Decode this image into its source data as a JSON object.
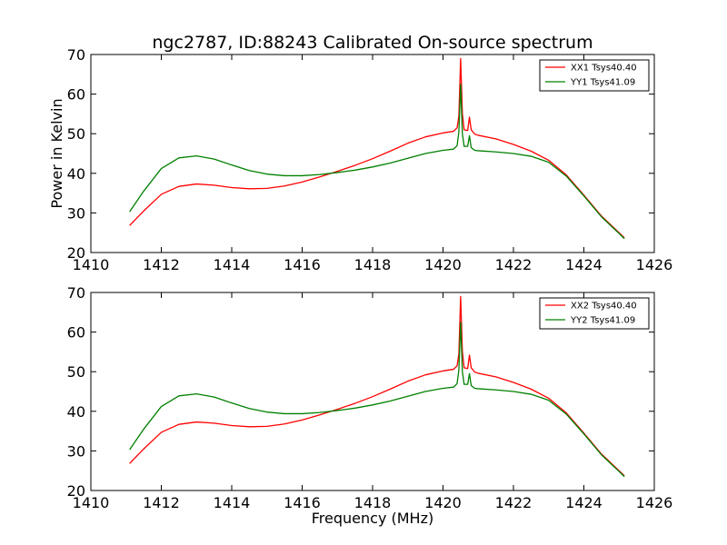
{
  "chart_data": [
    {
      "type": "line",
      "title": "ngc2787, ID:88243 Calibrated On-source spectrum",
      "xlabel": "",
      "ylabel": "Power in Kelvin",
      "xlim": [
        1410,
        1426
      ],
      "ylim": [
        20,
        70
      ],
      "xticks": [
        "1410",
        "1412",
        "1414",
        "1416",
        "1418",
        "1420",
        "1422",
        "1424",
        "1426"
      ],
      "yticks": [
        "20",
        "30",
        "40",
        "50",
        "60",
        "70"
      ],
      "legend_position": "top-right",
      "grid": false,
      "series": [
        {
          "name": "XX1 Tsys40.40",
          "color": "#ff0000",
          "x": [
            1411.1,
            1411.5,
            1412.0,
            1412.5,
            1413.0,
            1413.5,
            1414.0,
            1414.5,
            1415.0,
            1415.5,
            1416.0,
            1416.5,
            1417.0,
            1417.5,
            1418.0,
            1418.5,
            1419.0,
            1419.5,
            1420.0,
            1420.3,
            1420.4,
            1420.45,
            1420.5,
            1420.55,
            1420.6,
            1420.7,
            1420.75,
            1420.8,
            1420.9,
            1421.0,
            1421.5,
            1422.0,
            1422.5,
            1423.0,
            1423.5,
            1424.0,
            1424.5,
            1425.0,
            1425.15
          ],
          "y": [
            26.8,
            30.5,
            34.7,
            36.7,
            37.3,
            37.0,
            36.4,
            36.1,
            36.2,
            36.8,
            37.8,
            39.1,
            40.5,
            42.0,
            43.7,
            45.6,
            47.6,
            49.2,
            50.2,
            50.6,
            51.5,
            54.5,
            69.0,
            55.0,
            51.0,
            50.8,
            54.2,
            51.0,
            49.9,
            49.6,
            48.7,
            47.3,
            45.6,
            43.3,
            39.6,
            34.5,
            29.2,
            25.0,
            23.7
          ]
        },
        {
          "name": "YY1 Tsys41.09",
          "color": "#008000",
          "x": [
            1411.1,
            1411.5,
            1412.0,
            1412.5,
            1413.0,
            1413.5,
            1414.0,
            1414.5,
            1415.0,
            1415.5,
            1416.0,
            1416.5,
            1417.0,
            1417.5,
            1418.0,
            1418.5,
            1419.0,
            1419.5,
            1420.0,
            1420.3,
            1420.4,
            1420.45,
            1420.5,
            1420.55,
            1420.6,
            1420.7,
            1420.75,
            1420.8,
            1420.9,
            1421.0,
            1421.5,
            1422.0,
            1422.5,
            1423.0,
            1423.5,
            1424.0,
            1424.5,
            1425.0,
            1425.15
          ],
          "y": [
            30.3,
            35.5,
            41.2,
            43.9,
            44.4,
            43.6,
            42.1,
            40.7,
            39.8,
            39.4,
            39.4,
            39.7,
            40.2,
            40.8,
            41.6,
            42.6,
            43.8,
            45.0,
            45.8,
            46.1,
            47.0,
            50.5,
            62.5,
            50.0,
            46.8,
            46.8,
            49.5,
            46.5,
            45.8,
            45.7,
            45.4,
            45.0,
            44.3,
            42.8,
            39.3,
            34.3,
            29.0,
            24.8,
            23.5
          ]
        }
      ]
    },
    {
      "type": "line",
      "title": "",
      "xlabel": "Frequency (MHz)",
      "ylabel": "",
      "xlim": [
        1410,
        1426
      ],
      "ylim": [
        20,
        70
      ],
      "xticks": [
        "1410",
        "1412",
        "1414",
        "1416",
        "1418",
        "1420",
        "1422",
        "1424",
        "1426"
      ],
      "yticks": [
        "20",
        "30",
        "40",
        "50",
        "60",
        "70"
      ],
      "legend_position": "top-right",
      "grid": false,
      "series": [
        {
          "name": "XX2 Tsys40.40",
          "color": "#ff0000",
          "x": [
            1411.1,
            1411.5,
            1412.0,
            1412.5,
            1413.0,
            1413.5,
            1414.0,
            1414.5,
            1415.0,
            1415.5,
            1416.0,
            1416.5,
            1417.0,
            1417.5,
            1418.0,
            1418.5,
            1419.0,
            1419.5,
            1420.0,
            1420.3,
            1420.4,
            1420.45,
            1420.5,
            1420.55,
            1420.6,
            1420.7,
            1420.75,
            1420.8,
            1420.9,
            1421.0,
            1421.5,
            1422.0,
            1422.5,
            1423.0,
            1423.5,
            1424.0,
            1424.5,
            1425.0,
            1425.15
          ],
          "y": [
            26.8,
            30.5,
            34.7,
            36.7,
            37.3,
            37.0,
            36.4,
            36.1,
            36.2,
            36.8,
            37.8,
            39.1,
            40.5,
            42.0,
            43.7,
            45.6,
            47.6,
            49.2,
            50.2,
            50.6,
            51.5,
            54.5,
            69.0,
            55.0,
            51.0,
            50.8,
            54.2,
            51.0,
            49.9,
            49.6,
            48.7,
            47.3,
            45.6,
            43.3,
            39.6,
            34.5,
            29.2,
            25.0,
            23.7
          ]
        },
        {
          "name": "YY2 Tsys41.09",
          "color": "#008000",
          "x": [
            1411.1,
            1411.5,
            1412.0,
            1412.5,
            1413.0,
            1413.5,
            1414.0,
            1414.5,
            1415.0,
            1415.5,
            1416.0,
            1416.5,
            1417.0,
            1417.5,
            1418.0,
            1418.5,
            1419.0,
            1419.5,
            1420.0,
            1420.3,
            1420.4,
            1420.45,
            1420.5,
            1420.55,
            1420.6,
            1420.7,
            1420.75,
            1420.8,
            1420.9,
            1421.0,
            1421.5,
            1422.0,
            1422.5,
            1423.0,
            1423.5,
            1424.0,
            1424.5,
            1425.0,
            1425.15
          ],
          "y": [
            30.3,
            35.5,
            41.2,
            43.9,
            44.4,
            43.6,
            42.1,
            40.7,
            39.8,
            39.4,
            39.4,
            39.7,
            40.2,
            40.8,
            41.6,
            42.6,
            43.8,
            45.0,
            45.8,
            46.1,
            47.0,
            50.5,
            62.5,
            50.0,
            46.8,
            46.8,
            49.5,
            46.5,
            45.8,
            45.7,
            45.4,
            45.0,
            44.3,
            42.8,
            39.3,
            34.3,
            29.0,
            24.8,
            23.5
          ]
        }
      ]
    }
  ]
}
